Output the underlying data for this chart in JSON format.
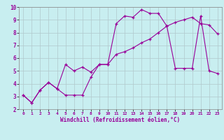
{
  "xlabel": "Windchill (Refroidissement éolien,°C)",
  "xlim": [
    -0.5,
    23.5
  ],
  "ylim": [
    2,
    10
  ],
  "xticks": [
    0,
    1,
    2,
    3,
    4,
    5,
    6,
    7,
    8,
    9,
    10,
    11,
    12,
    13,
    14,
    15,
    16,
    17,
    18,
    19,
    20,
    21,
    22,
    23
  ],
  "yticks": [
    2,
    3,
    4,
    5,
    6,
    7,
    8,
    9,
    10
  ],
  "bg_color": "#c8eef0",
  "line_color": "#990099",
  "grid_color": "#b0c8cc",
  "line1_x": [
    0,
    1,
    2,
    3,
    4,
    5,
    6,
    7,
    8,
    9,
    10,
    11,
    12,
    13,
    14,
    15,
    16,
    17,
    18,
    19,
    20,
    21,
    22,
    23
  ],
  "line1_y": [
    3.1,
    2.5,
    3.5,
    4.1,
    3.6,
    5.5,
    5.0,
    5.3,
    4.9,
    5.5,
    5.5,
    8.7,
    9.3,
    9.2,
    9.8,
    9.5,
    9.5,
    8.5,
    5.2,
    5.2,
    5.2,
    9.3,
    5.0,
    4.8
  ],
  "line2_x": [
    0,
    1,
    2,
    3,
    4,
    5,
    6,
    7,
    8,
    9,
    10,
    11,
    12,
    13,
    14,
    15,
    16,
    17,
    18,
    19,
    20,
    21,
    22,
    23
  ],
  "line2_y": [
    3.1,
    2.5,
    3.5,
    4.1,
    3.6,
    3.1,
    3.1,
    3.1,
    4.5,
    5.5,
    5.5,
    6.3,
    6.5,
    6.8,
    7.2,
    7.5,
    8.0,
    8.5,
    8.8,
    9.0,
    9.2,
    8.7,
    8.6,
    7.9
  ]
}
